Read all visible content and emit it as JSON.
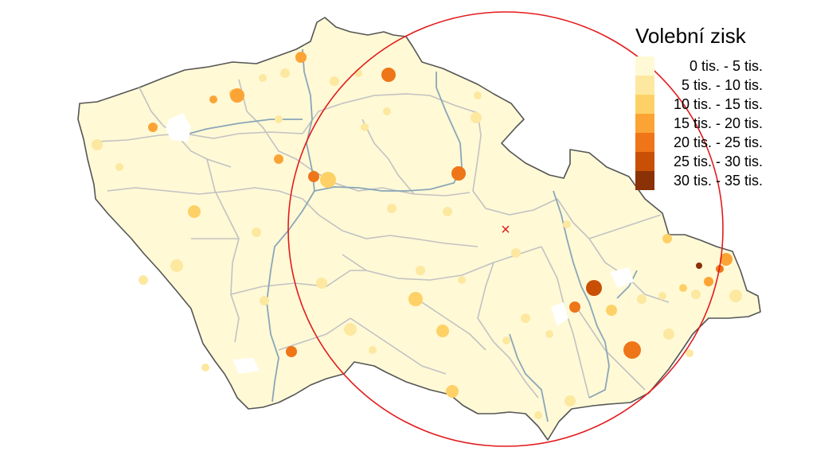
{
  "legend": {
    "title": "Volební zisk",
    "items": [
      {
        "label": "0 tis. - 5 tis.",
        "color": "#fff9d6"
      },
      {
        "label": "5 tis. - 10 tis.",
        "color": "#fde8a0"
      },
      {
        "label": "10 tis. - 15 tis.",
        "color": "#fdd166"
      },
      {
        "label": "15 tis. - 20 tis.",
        "color": "#fba435"
      },
      {
        "label": "20 tis. - 25 tis.",
        "color": "#ee7518"
      },
      {
        "label": "25 tis. - 30 tis.",
        "color": "#c84f06"
      },
      {
        "label": "30 tis. - 35 tis.",
        "color": "#8a3105"
      }
    ]
  },
  "map": {
    "land_color": "#fff9d6",
    "border_color": "#555555",
    "region_border_color": "#c2c2c2",
    "river_color": "#8aa6b8",
    "highlight_circle_color": "#e31a1c",
    "center_marker": "×"
  }
}
